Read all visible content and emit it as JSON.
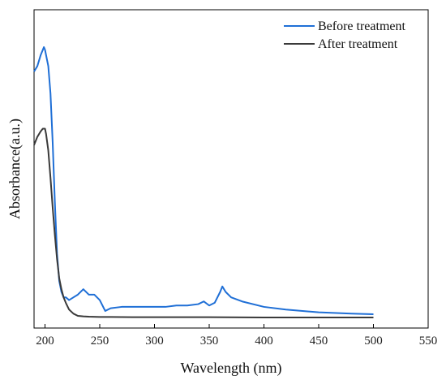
{
  "chart_data": {
    "type": "line",
    "title": "",
    "xlabel": "Wavelength (nm)",
    "ylabel": "Absorbance(a.u.)",
    "xlim": [
      190,
      550
    ],
    "ylim": [
      0,
      1
    ],
    "xticks": [
      200,
      250,
      300,
      350,
      400,
      450,
      500,
      550
    ],
    "x_tick_labels": [
      "200",
      "250",
      "300",
      "350",
      "400",
      "450",
      "500",
      "550"
    ],
    "grid": false,
    "y_tick_labels_shown": false,
    "legend_position": "top-right",
    "legend_entries": [
      "Before treatment",
      "After treatment"
    ],
    "series": [
      {
        "name": "Before treatment",
        "color": "#1f6fd6",
        "x": [
          190,
          193,
          196,
          198,
          199,
          200,
          201,
          203,
          205,
          207,
          209,
          211,
          213,
          215,
          217,
          219,
          222,
          226,
          230,
          235,
          240,
          245,
          250,
          255,
          260,
          270,
          280,
          290,
          300,
          310,
          320,
          330,
          340,
          345,
          350,
          355,
          360,
          362,
          365,
          370,
          380,
          400,
          420,
          450,
          480,
          500
        ],
        "y": [
          0.91,
          0.93,
          0.97,
          0.99,
          1.0,
          0.99,
          0.97,
          0.93,
          0.83,
          0.65,
          0.43,
          0.24,
          0.14,
          0.1,
          0.08,
          0.08,
          0.07,
          0.08,
          0.09,
          0.11,
          0.09,
          0.09,
          0.07,
          0.03,
          0.04,
          0.045,
          0.045,
          0.045,
          0.045,
          0.045,
          0.05,
          0.05,
          0.055,
          0.065,
          0.05,
          0.06,
          0.1,
          0.12,
          0.1,
          0.08,
          0.065,
          0.045,
          0.035,
          0.025,
          0.02,
          0.018
        ]
      },
      {
        "name": "After treatment",
        "color": "#3a3a3a",
        "x": [
          190,
          193,
          196,
          198,
          199,
          200,
          201,
          203,
          205,
          207,
          209,
          211,
          213,
          215,
          217,
          219,
          222,
          226,
          230,
          235,
          240,
          250,
          260,
          280,
          300,
          350,
          400,
          450,
          500
        ],
        "y": [
          0.64,
          0.67,
          0.69,
          0.7,
          0.7,
          0.7,
          0.68,
          0.62,
          0.52,
          0.41,
          0.31,
          0.22,
          0.15,
          0.11,
          0.08,
          0.06,
          0.035,
          0.02,
          0.012,
          0.01,
          0.009,
          0.008,
          0.008,
          0.007,
          0.007,
          0.007,
          0.006,
          0.006,
          0.006
        ]
      }
    ]
  }
}
